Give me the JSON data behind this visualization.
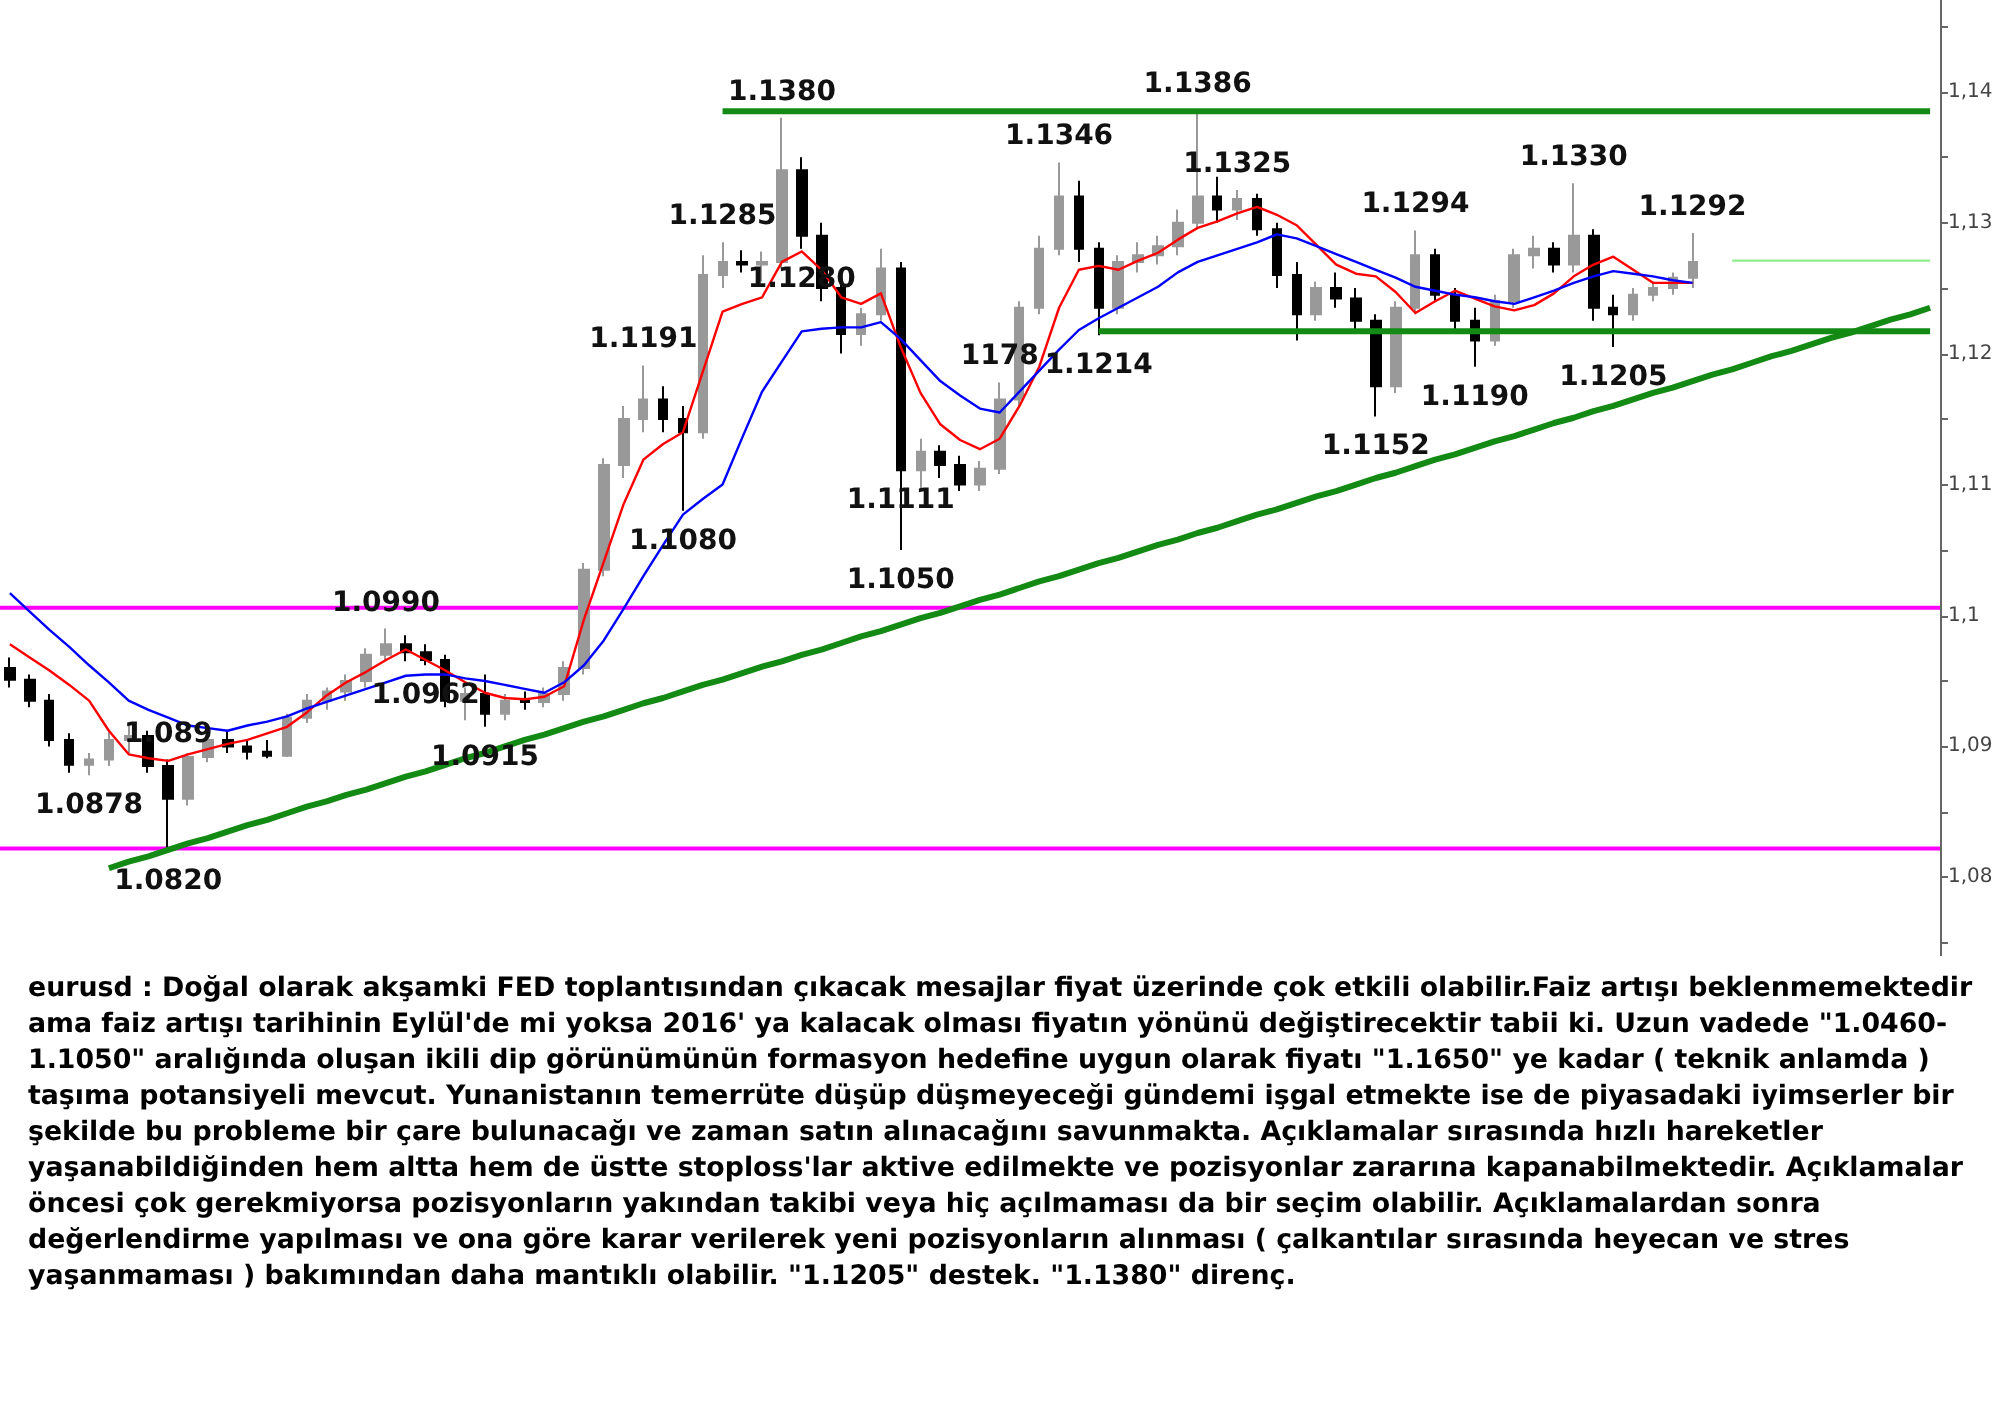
{
  "chart_data": {
    "type": "candlestick",
    "tick_labels": "y",
    "colors": [
      "#000000",
      "#000000",
      "#000000",
      "#000000",
      "#999999",
      "#999999",
      "#999999",
      "#000000",
      "#000000",
      "#999999",
      "#999999",
      "#000000",
      "#000000",
      "#000000",
      "#999999",
      "#999999",
      "#999999",
      "#999999",
      "#999999",
      "#999999",
      "#000000",
      "#000000",
      "#000000",
      "#999999",
      "#000000",
      "#999999",
      "#000000",
      "#999999",
      "#999999",
      "#999999",
      "#999999",
      "#999999",
      "#999999",
      "#000000",
      "#000000",
      "#999999",
      "#999999",
      "#000000",
      "#999999",
      "#999999",
      "#000000",
      "#000000",
      "#000000",
      "#999999",
      "#999999",
      "#000000",
      "#999999",
      "#000000",
      "#000000",
      "#999999",
      "#999999",
      "#999999",
      "#999999",
      "#999999",
      "#000000",
      "#000000",
      "#999999",
      "#999999",
      "#999999",
      "#999999",
      "#999999",
      "#000000",
      "#999999",
      "#000000",
      "#000000",
      "#000000",
      "#999999",
      "#000000",
      "#000000",
      "#000000",
      "#999999",
      "#999999",
      "#000000",
      "#000000",
      "#000000",
      "#999999",
      "#999999",
      "#999999",
      "#000000",
      "#999999",
      "#000000",
      "#000000",
      "#999999",
      "#999999",
      "#999999",
      "#999999",
      null,
      null,
      null,
      null,
      null,
      null,
      null,
      null,
      null,
      null,
      null,
      null
    ],
    "marker": "none",
    "ylim": [
      1.074,
      1.147
    ],
    "yticks": [
      {
        "value": 1.075,
        "label": null
      },
      {
        "value": 1.08,
        "label": "1,08"
      },
      {
        "value": 1.085,
        "label": null
      },
      {
        "value": 1.09,
        "label": "1,09"
      },
      {
        "value": 1.095,
        "label": null
      },
      {
        "value": 1.1,
        "label": "1,1"
      },
      {
        "value": 1.105,
        "label": null
      },
      {
        "value": 1.11,
        "label": "1,11"
      },
      {
        "value": 1.115,
        "label": null
      },
      {
        "value": 1.12,
        "label": "1,12"
      },
      {
        "value": 1.125,
        "label": null
      },
      {
        "value": 1.13,
        "label": "1,13"
      },
      {
        "value": 1.135,
        "label": null
      },
      {
        "value": 1.14,
        "label": "1,14"
      },
      {
        "value": 1.145,
        "label": null
      }
    ],
    "categories": [
      null,
      null,
      null,
      null,
      null,
      null,
      null,
      null,
      null,
      null,
      null,
      null,
      null,
      null,
      null,
      null,
      null,
      null,
      null,
      null,
      null,
      null,
      null,
      null,
      null,
      null,
      null,
      null,
      null,
      null,
      null,
      null,
      null,
      null,
      null,
      null,
      null,
      null,
      null,
      null,
      null,
      null,
      null,
      null,
      null,
      null,
      null,
      null,
      null,
      null,
      null,
      null,
      null,
      null,
      null,
      null,
      null,
      null,
      null,
      null,
      null,
      null,
      null,
      null,
      null,
      null,
      null,
      null,
      null,
      null,
      null,
      null,
      null,
      null,
      null,
      null,
      null,
      null,
      null,
      null,
      null,
      null,
      null,
      null,
      null,
      null,
      null,
      null,
      null,
      null,
      null,
      null,
      null,
      null,
      null,
      null,
      null,
      null
    ],
    "ohlc": [
      [
        1.096,
        1.0968,
        1.0945,
        1.0951
      ],
      [
        1.0951,
        1.0955,
        1.093,
        1.0935
      ],
      [
        1.0935,
        1.094,
        1.09,
        1.0905
      ],
      [
        1.0905,
        1.091,
        1.088,
        1.0886
      ],
      [
        1.0886,
        1.0895,
        1.0878,
        1.089
      ],
      [
        1.089,
        1.0912,
        1.0885,
        1.0905
      ],
      [
        1.0905,
        1.0916,
        1.0895,
        1.0908
      ],
      [
        1.0908,
        1.0912,
        1.088,
        1.0885
      ],
      [
        1.0885,
        1.089,
        1.082,
        1.086
      ],
      [
        1.086,
        1.0895,
        1.0855,
        1.0892
      ],
      [
        1.0892,
        1.091,
        1.0888,
        1.0905
      ],
      [
        1.0905,
        1.0912,
        1.0895,
        1.09
      ],
      [
        1.09,
        1.0905,
        1.089,
        1.0896
      ],
      [
        1.0896,
        1.0905,
        1.0891,
        1.0893
      ],
      [
        1.0893,
        1.0925,
        1.0892,
        1.0922
      ],
      [
        1.0922,
        1.094,
        1.0918,
        1.0935
      ],
      [
        1.0935,
        1.0945,
        1.0928,
        1.0942
      ],
      [
        1.0942,
        1.0955,
        1.0935,
        1.095
      ],
      [
        1.095,
        1.0975,
        1.0945,
        1.097
      ],
      [
        1.097,
        1.099,
        1.0965,
        1.0978
      ],
      [
        1.0978,
        1.0985,
        1.0965,
        1.0972
      ],
      [
        1.0972,
        1.0978,
        1.0962,
        1.0966
      ],
      [
        1.0966,
        1.097,
        1.093,
        1.0935
      ],
      [
        1.0935,
        1.0945,
        1.092,
        1.094
      ],
      [
        1.094,
        1.0955,
        1.0915,
        1.0925
      ],
      [
        1.0925,
        1.094,
        1.092,
        1.0935
      ],
      [
        1.0935,
        1.0942,
        1.0928,
        1.0934
      ],
      [
        1.0934,
        1.0945,
        1.093,
        1.094
      ],
      [
        1.094,
        1.0965,
        1.0935,
        1.096
      ],
      [
        1.096,
        1.104,
        1.0955,
        1.1035
      ],
      [
        1.1035,
        1.112,
        1.103,
        1.1115
      ],
      [
        1.1115,
        1.116,
        1.1105,
        1.115
      ],
      [
        1.115,
        1.1191,
        1.114,
        1.1165
      ],
      [
        1.1165,
        1.1175,
        1.114,
        1.115
      ],
      [
        1.115,
        1.116,
        1.108,
        1.114
      ],
      [
        1.114,
        1.1275,
        1.1135,
        1.126
      ],
      [
        1.126,
        1.1285,
        1.125,
        1.127
      ],
      [
        1.127,
        1.1279,
        1.1262,
        1.1268
      ],
      [
        1.1268,
        1.1278,
        1.1255,
        1.127
      ],
      [
        1.127,
        1.138,
        1.1265,
        1.134
      ],
      [
        1.134,
        1.135,
        1.128,
        1.129
      ],
      [
        1.129,
        1.13,
        1.124,
        1.125
      ],
      [
        1.125,
        1.126,
        1.12,
        1.1215
      ],
      [
        1.1215,
        1.1235,
        1.1206,
        1.123
      ],
      [
        1.123,
        1.128,
        1.1225,
        1.1265
      ],
      [
        1.1265,
        1.127,
        1.105,
        1.1111
      ],
      [
        1.1111,
        1.1135,
        1.1095,
        1.1125
      ],
      [
        1.1125,
        1.113,
        1.1105,
        1.1115
      ],
      [
        1.1115,
        1.1122,
        1.1095,
        1.11
      ],
      [
        1.11,
        1.1118,
        1.1095,
        1.1112
      ],
      [
        1.1112,
        1.1178,
        1.1108,
        1.1165
      ],
      [
        1.1165,
        1.124,
        1.116,
        1.1235
      ],
      [
        1.1235,
        1.129,
        1.123,
        1.128
      ],
      [
        1.128,
        1.1346,
        1.1275,
        1.132
      ],
      [
        1.132,
        1.1332,
        1.127,
        1.128
      ],
      [
        1.128,
        1.1285,
        1.1214,
        1.1235
      ],
      [
        1.1235,
        1.1275,
        1.123,
        1.127
      ],
      [
        1.127,
        1.1285,
        1.1262,
        1.1275
      ],
      [
        1.1275,
        1.129,
        1.1268,
        1.1282
      ],
      [
        1.1282,
        1.131,
        1.1275,
        1.13
      ],
      [
        1.13,
        1.1386,
        1.1295,
        1.132
      ],
      [
        1.132,
        1.1335,
        1.13,
        1.131
      ],
      [
        1.131,
        1.1325,
        1.1302,
        1.1318
      ],
      [
        1.1318,
        1.1322,
        1.129,
        1.1295
      ],
      [
        1.1295,
        1.13,
        1.125,
        1.126
      ],
      [
        1.126,
        1.127,
        1.121,
        1.123
      ],
      [
        1.123,
        1.1255,
        1.1225,
        1.125
      ],
      [
        1.125,
        1.1262,
        1.1235,
        1.1242
      ],
      [
        1.1242,
        1.125,
        1.1215,
        1.1225
      ],
      [
        1.1225,
        1.123,
        1.1152,
        1.1175
      ],
      [
        1.1175,
        1.124,
        1.117,
        1.1235
      ],
      [
        1.1235,
        1.1294,
        1.123,
        1.1275
      ],
      [
        1.1275,
        1.128,
        1.124,
        1.1245
      ],
      [
        1.1245,
        1.125,
        1.1215,
        1.1225
      ],
      [
        1.1225,
        1.1235,
        1.119,
        1.121
      ],
      [
        1.121,
        1.1245,
        1.1206,
        1.124
      ],
      [
        1.124,
        1.128,
        1.1235,
        1.1275
      ],
      [
        1.1275,
        1.129,
        1.1265,
        1.128
      ],
      [
        1.128,
        1.1285,
        1.1262,
        1.1268
      ],
      [
        1.1268,
        1.133,
        1.1262,
        1.129
      ],
      [
        1.129,
        1.1295,
        1.1225,
        1.1235
      ],
      [
        1.1235,
        1.1245,
        1.1205,
        1.123
      ],
      [
        1.123,
        1.125,
        1.1225,
        1.1245
      ],
      [
        1.1245,
        1.1255,
        1.124,
        1.125
      ],
      [
        1.125,
        1.1262,
        1.1245,
        1.1258
      ],
      [
        1.1258,
        1.1292,
        1.125,
        1.127
      ],
      null,
      null,
      null,
      null,
      null,
      null,
      null,
      null,
      null,
      null,
      null,
      null
    ],
    "series": [
      {
        "type": "line",
        "color": "#ff0000",
        "values": [
          1.0978,
          1.0968,
          1.0958,
          1.0947,
          1.0935,
          1.0912,
          1.0894,
          1.0891,
          1.0889,
          1.0894,
          1.0898,
          1.0902,
          1.0905,
          1.091,
          1.0915,
          1.0926,
          1.0939,
          1.0949,
          1.0957,
          1.0966,
          1.0974,
          1.0966,
          1.0958,
          1.0949,
          1.0941,
          1.0937,
          1.0936,
          1.0938,
          1.0946,
          1.0997,
          1.1041,
          1.1085,
          1.1119,
          1.1131,
          1.114,
          1.1186,
          1.1232,
          1.1238,
          1.1243,
          1.127,
          1.1278,
          1.1264,
          1.1243,
          1.1238,
          1.1246,
          1.1205,
          1.117,
          1.1146,
          1.1134,
          1.1127,
          1.1135,
          1.116,
          1.119,
          1.1235,
          1.1264,
          1.1267,
          1.1264,
          1.1271,
          1.1277,
          1.1287,
          1.1296,
          1.1301,
          1.1307,
          1.1312,
          1.1306,
          1.1298,
          1.1283,
          1.1268,
          1.1261,
          1.1259,
          1.1247,
          1.1231,
          1.124,
          1.1248,
          1.1242,
          1.1236,
          1.1233,
          1.1237,
          1.1246,
          1.1259,
          1.1268,
          1.1274,
          1.1264,
          1.1254,
          1.1254,
          1.1254,
          null,
          null,
          null,
          null,
          null,
          null,
          null,
          null,
          null,
          null,
          null,
          null
        ]
      },
      {
        "type": "line",
        "color": "#0000ff",
        "values": [
          1.1017,
          1.1003,
          1.0989,
          1.0976,
          1.0962,
          1.0949,
          1.0935,
          1.0928,
          1.0922,
          1.0916,
          1.0914,
          1.0912,
          1.0916,
          1.0919,
          1.0923,
          1.0929,
          1.0934,
          1.0939,
          1.0944,
          1.0949,
          1.0954,
          1.0955,
          1.0955,
          1.0952,
          1.095,
          1.0947,
          1.0944,
          1.0941,
          1.0949,
          1.0962,
          1.0981,
          1.1005,
          1.103,
          1.1054,
          1.1077,
          1.1089,
          1.11,
          1.1136,
          1.1171,
          1.1194,
          1.1217,
          1.1219,
          1.122,
          1.122,
          1.1224,
          1.1211,
          1.1195,
          1.1179,
          1.1168,
          1.1158,
          1.1155,
          1.1171,
          1.1187,
          1.1203,
          1.1218,
          1.1227,
          1.1235,
          1.1243,
          1.1251,
          1.1262,
          1.127,
          1.1275,
          1.128,
          1.1285,
          1.1291,
          1.1288,
          1.1282,
          1.1276,
          1.127,
          1.1264,
          1.1258,
          1.1251,
          1.1248,
          1.1245,
          1.1243,
          1.124,
          1.1238,
          1.1243,
          1.1248,
          1.1254,
          1.1259,
          1.1263,
          1.1261,
          1.1259,
          1.1256,
          1.1254,
          null,
          null,
          null,
          null,
          null,
          null,
          null,
          null,
          null,
          null,
          null,
          null
        ]
      },
      {
        "type": "line",
        "color": "#138a13",
        "values": [
          null,
          null,
          null,
          null,
          null,
          1.0807,
          1.0812,
          1.0816,
          1.0821,
          1.0826,
          1.083,
          1.0835,
          1.084,
          1.0844,
          1.0849,
          1.0854,
          1.0858,
          1.0863,
          1.0867,
          1.0872,
          1.0877,
          1.0881,
          1.0886,
          1.0891,
          1.0895,
          1.09,
          1.0905,
          1.0909,
          1.0914,
          1.0919,
          1.0923,
          1.0928,
          1.0933,
          1.0937,
          1.0942,
          1.0947,
          1.0951,
          1.0956,
          1.0961,
          1.0965,
          1.097,
          1.0974,
          1.0979,
          1.0984,
          1.0988,
          1.0993,
          1.0998,
          1.1002,
          1.1007,
          1.1012,
          1.1016,
          1.1021,
          1.1026,
          1.103,
          1.1035,
          1.104,
          1.1044,
          1.1049,
          1.1054,
          1.1058,
          1.1063,
          1.1067,
          1.1072,
          1.1077,
          1.1081,
          1.1086,
          1.1091,
          1.1095,
          1.11,
          1.1105,
          1.1109,
          1.1114,
          1.1119,
          1.1123,
          1.1128,
          1.1133,
          1.1137,
          1.1142,
          1.1147,
          1.1151,
          1.1156,
          1.116,
          1.1165,
          1.117,
          1.1174,
          1.1179,
          1.1184,
          1.1188,
          1.1193,
          1.1198,
          1.1202,
          1.1207,
          1.1212,
          1.1216,
          1.1221,
          1.1226,
          1.123,
          1.1235
        ]
      },
      {
        "type": "line",
        "color": "#138a13",
        "values": [
          null,
          null,
          null,
          null,
          null,
          null,
          null,
          null,
          null,
          null,
          null,
          null,
          null,
          null,
          null,
          null,
          null,
          null,
          null,
          null,
          null,
          null,
          null,
          null,
          null,
          null,
          null,
          null,
          null,
          null,
          null,
          null,
          null,
          null,
          null,
          null,
          1.1385,
          1.1385,
          1.1385,
          1.1385,
          1.1385,
          1.1385,
          1.1385,
          1.1385,
          1.1385,
          1.1385,
          1.1385,
          1.1385,
          1.1385,
          1.1385,
          1.1385,
          1.1385,
          1.1385,
          1.1385,
          1.1385,
          1.1385,
          1.1385,
          1.1385,
          1.1385,
          1.1385,
          1.1385,
          1.1385,
          1.1385,
          1.1385,
          1.1385,
          1.1385,
          1.1385,
          1.1385,
          1.1385,
          1.1385,
          1.1385,
          1.1385,
          1.1385,
          1.1385,
          1.1385,
          1.1385,
          1.1385,
          1.1385,
          1.1385,
          1.1385,
          1.1385,
          1.1385,
          1.1385,
          1.1385,
          1.1385,
          1.1385,
          1.1385,
          1.1385,
          1.1385,
          1.1385,
          1.1385,
          1.1385,
          1.1385,
          1.1385,
          1.1385,
          1.1385,
          1.1385,
          1.1385
        ]
      },
      {
        "type": "line",
        "color": "#138a13",
        "values": [
          null,
          null,
          null,
          null,
          null,
          null,
          null,
          null,
          null,
          null,
          null,
          null,
          null,
          null,
          null,
          null,
          null,
          null,
          null,
          null,
          null,
          null,
          null,
          null,
          null,
          null,
          null,
          null,
          null,
          null,
          null,
          null,
          null,
          null,
          null,
          null,
          null,
          null,
          null,
          null,
          null,
          null,
          null,
          null,
          null,
          null,
          null,
          null,
          null,
          null,
          null,
          null,
          null,
          null,
          null,
          1.1217,
          1.1217,
          1.1217,
          1.1217,
          1.1217,
          1.1217,
          1.1217,
          1.1217,
          1.1217,
          1.1217,
          1.1217,
          1.1217,
          1.1217,
          1.1217,
          1.1217,
          1.1217,
          1.1217,
          1.1217,
          1.1217,
          1.1217,
          1.1217,
          1.1217,
          1.1217,
          1.1217,
          1.1217,
          1.1217,
          1.1217,
          1.1217,
          1.1217,
          1.1217,
          1.1217,
          1.1217,
          1.1217,
          1.1217,
          1.1217,
          1.1217,
          1.1217,
          1.1217,
          1.1217,
          1.1217,
          1.1217,
          1.1217,
          1.1217
        ]
      },
      {
        "type": "line",
        "color": "#90ee90",
        "values": [
          null,
          null,
          null,
          null,
          null,
          null,
          null,
          null,
          null,
          null,
          null,
          null,
          null,
          null,
          null,
          null,
          null,
          null,
          null,
          null,
          null,
          null,
          null,
          null,
          null,
          null,
          null,
          null,
          null,
          null,
          null,
          null,
          null,
          null,
          null,
          null,
          null,
          null,
          null,
          null,
          null,
          null,
          null,
          null,
          null,
          null,
          null,
          null,
          null,
          null,
          null,
          null,
          null,
          null,
          null,
          null,
          null,
          null,
          null,
          null,
          null,
          null,
          null,
          null,
          null,
          null,
          null,
          null,
          null,
          null,
          null,
          null,
          null,
          null,
          null,
          null,
          null,
          null,
          null,
          null,
          null,
          null,
          null,
          null,
          null,
          null,
          null,
          1.1271,
          1.1271,
          1.1271,
          1.1271,
          1.1271,
          1.1271,
          1.1271,
          1.1271,
          1.1271,
          1.1271,
          1.1271
        ]
      }
    ],
    "ref_lines": [
      {
        "axis": "y",
        "value": 1.1006,
        "color": "#ff00ff"
      },
      {
        "axis": "y",
        "value": 1.0822,
        "color": "#ff00ff"
      }
    ],
    "annotations": [
      {
        "text": "1.0878",
        "y": 1.0878
      },
      {
        "text": "1.0820",
        "y": 1.082
      },
      {
        "text": "1.089",
        "y": 1.089
      },
      {
        "text": "1.0990",
        "y": 1.099
      },
      {
        "text": "1.0962",
        "y": 1.0962
      },
      {
        "text": "1.0915",
        "y": 1.0915
      },
      {
        "text": "1.1191",
        "y": 1.1191
      },
      {
        "text": "1.1080",
        "y": 1.108
      },
      {
        "text": "1.1285",
        "y": 1.1285
      },
      {
        "text": "1.1380",
        "y": 1.138
      },
      {
        "text": "1.1280",
        "y": 1.128
      },
      {
        "text": "1.1050",
        "y": 1.105
      },
      {
        "text": "1.1111",
        "y": 1.1111
      },
      {
        "text": "1178",
        "y": 1.1178
      },
      {
        "text": "1.1346",
        "y": 1.1346
      },
      {
        "text": "1.1214",
        "y": 1.1214
      },
      {
        "text": "1.1386",
        "y": 1.1386
      },
      {
        "text": "1.1325",
        "y": 1.1325
      },
      {
        "text": "1.1152",
        "y": 1.1152
      },
      {
        "text": "1.1294",
        "y": 1.1294
      },
      {
        "text": "1.1190",
        "y": 1.119
      },
      {
        "text": "1.1330",
        "y": 1.133
      },
      {
        "text": "1.1205",
        "y": 1.1205
      },
      {
        "text": "1.1292",
        "y": 1.1292
      },
      "eurusd : Doğal olarak akşamki FED toplantısından çıkacak mesajlar fiyat üzerinde çok etkili olabilir.Faiz artışı beklenmemektedir ama faiz artışı tarihinin Eylül'de mi yoksa 2016' ya kalacak olması fiyatın yönünü değiştirecektir tabii ki. Uzun vadede \"1.0460-1.1050\" aralığında oluşan ikili dip görünümünün formasyon hedefine uygun olarak fiyatı \"1.1650\" ye kadar ( teknik anlamda ) taşıma potansiyeli mevcut. Yunanistanın temerrüte düşüp düşmeyeceği gündemi işgal etmekte ise de piyasadaki iyimserler bir şekilde bu probleme bir çare bulunacağı ve zaman satın alınacağını savunmakta. Açıklamalar sırasında hızlı hareketler yaşanabildiğinden hem altta hem de üstte stoploss'lar aktive edilmekte ve pozisyonlar zararına kapanabilmektedir. Açıklamalar öncesi çok gerekmiyorsa pozisyonların yakından takibi veya hiç açılmaması da bir seçim olabilir. Açıklamalardan sonra değerlendirme yapılması ve ona göre karar verilerek yeni pozisyonların alınması ( çalkantılar sırasında heyecan ve stres yaşanmaması ) bakımından daha mantıklı olabilir. \"1.1205\" destek. \"1.1380\" direnç."
    ]
  }
}
